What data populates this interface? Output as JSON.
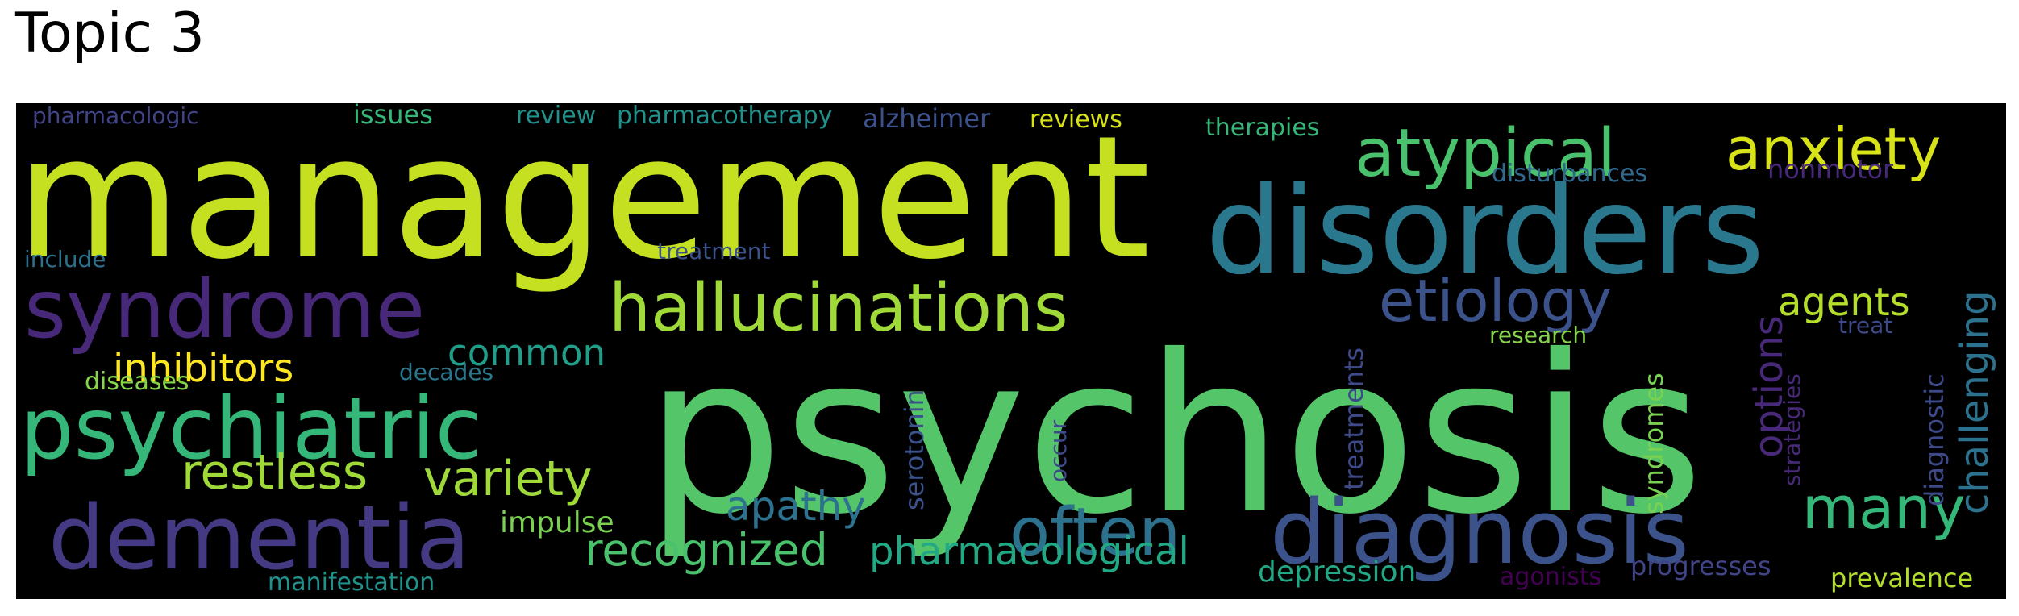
{
  "title": "Topic 3",
  "words": [
    {
      "text": "management",
      "color": "#c5e021"
    },
    {
      "text": "psychosis",
      "color": "#54c568"
    },
    {
      "text": "disorders",
      "color": "#2a788e"
    },
    {
      "text": "syndrome",
      "color": "#482878"
    },
    {
      "text": "psychiatric",
      "color": "#35b779"
    },
    {
      "text": "dementia",
      "color": "#443983"
    },
    {
      "text": "diagnosis",
      "color": "#3b528b"
    },
    {
      "text": "hallucinations",
      "color": "#a0da39"
    },
    {
      "text": "atypical",
      "color": "#4ac16d"
    },
    {
      "text": "anxiety",
      "color": "#d8e219"
    },
    {
      "text": "etiology",
      "color": "#3b528b"
    },
    {
      "text": "often",
      "color": "#2c728e"
    },
    {
      "text": "many",
      "color": "#35b779"
    },
    {
      "text": "recognized",
      "color": "#4ac16d"
    },
    {
      "text": "pharmacological",
      "color": "#22a884"
    },
    {
      "text": "variety",
      "color": "#a0da39"
    },
    {
      "text": "restless",
      "color": "#a0da39"
    },
    {
      "text": "inhibitors",
      "color": "#fde725"
    },
    {
      "text": "common",
      "color": "#1f9e89"
    },
    {
      "text": "apathy",
      "color": "#2c728e"
    },
    {
      "text": "agents",
      "color": "#b5de2b"
    },
    {
      "text": "challenging",
      "color": "#2c728e"
    },
    {
      "text": "options",
      "color": "#482878"
    },
    {
      "text": "diagnostic",
      "color": "#3e4989"
    },
    {
      "text": "syndromes",
      "color": "#7ad151"
    },
    {
      "text": "treatments",
      "color": "#3e4989"
    },
    {
      "text": "serotonin",
      "color": "#3b528b"
    },
    {
      "text": "occur",
      "color": "#3e4989"
    },
    {
      "text": "strategies",
      "color": "#482878"
    },
    {
      "text": "impulse",
      "color": "#7ad151"
    },
    {
      "text": "depression",
      "color": "#22a884"
    },
    {
      "text": "progresses",
      "color": "#414487"
    },
    {
      "text": "agonists",
      "color": "#440154"
    },
    {
      "text": "prevalence",
      "color": "#b5de2b"
    },
    {
      "text": "manifestation",
      "color": "#21918c"
    },
    {
      "text": "diseases",
      "color": "#86d549"
    },
    {
      "text": "decades",
      "color": "#2a788e"
    },
    {
      "text": "research",
      "color": "#86d549"
    },
    {
      "text": "treat",
      "color": "#3e4989"
    },
    {
      "text": "include",
      "color": "#2c728e"
    },
    {
      "text": "treatment",
      "color": "#3b528b"
    },
    {
      "text": "pharmacologic",
      "color": "#414487"
    },
    {
      "text": "issues",
      "color": "#35b779"
    },
    {
      "text": "review",
      "color": "#21918c"
    },
    {
      "text": "pharmacotherapy",
      "color": "#21918c"
    },
    {
      "text": "alzheimer",
      "color": "#3b528b"
    },
    {
      "text": "reviews",
      "color": "#d8e219"
    },
    {
      "text": "therapies",
      "color": "#35b779"
    },
    {
      "text": "disturbances",
      "color": "#31688e"
    },
    {
      "text": "nonmotor",
      "color": "#482878"
    }
  ]
}
